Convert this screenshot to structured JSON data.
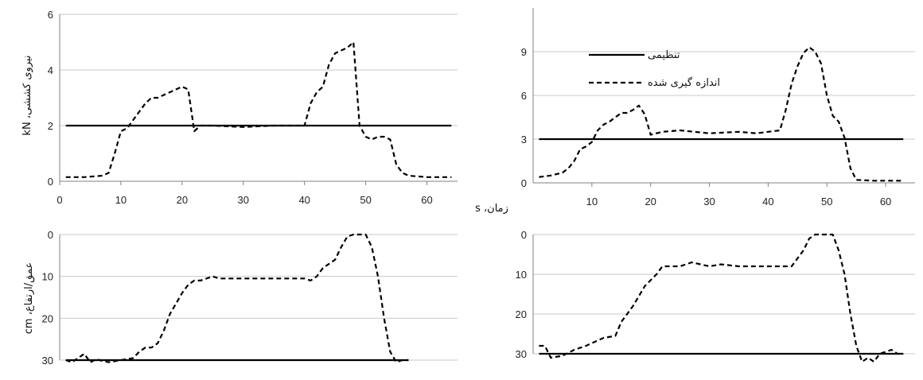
{
  "labels": {
    "force_ylabel": "نیروی کششی، kN",
    "depth_ylabel": "عمق/ارتفاع، cm",
    "time_xlabel": "زمان، s"
  },
  "legend": {
    "set_label": "تنظیمی",
    "measured_label": "اندازه گیری شده"
  },
  "colors": {
    "line": "#000000",
    "grid": "#c8c8c8",
    "axis": "#808080"
  },
  "chart_data": [
    {
      "id": "force-left",
      "type": "line",
      "xlim": [
        0,
        65
      ],
      "ylim": [
        0,
        6
      ],
      "xticks": [
        0,
        10,
        20,
        30,
        40,
        50,
        60
      ],
      "yticks": [
        0,
        2,
        4,
        6
      ],
      "inverted_y": false,
      "grid": true,
      "series": [
        {
          "name": "تنظیمی",
          "style": "solid",
          "x": [
            1,
            64
          ],
          "y": [
            2,
            2
          ]
        },
        {
          "name": "اندازه گیری شده",
          "style": "dashed",
          "x": [
            1,
            4,
            7,
            8,
            9,
            10,
            11,
            12,
            13,
            14,
            15,
            16,
            17,
            18,
            19,
            20,
            21,
            22,
            23,
            25,
            30,
            35,
            40,
            41,
            42,
            43,
            44,
            45,
            46,
            47,
            48,
            49,
            50,
            51,
            52,
            53,
            54,
            55,
            56,
            57,
            60,
            64
          ],
          "y": [
            0.15,
            0.15,
            0.2,
            0.3,
            1.0,
            1.8,
            1.9,
            2.2,
            2.5,
            2.8,
            3.0,
            3.0,
            3.1,
            3.2,
            3.3,
            3.4,
            3.3,
            1.8,
            2.0,
            2.0,
            1.95,
            2.0,
            2.0,
            2.8,
            3.2,
            3.4,
            4.2,
            4.6,
            4.7,
            4.8,
            5.0,
            2.0,
            1.6,
            1.5,
            1.6,
            1.6,
            1.5,
            0.6,
            0.3,
            0.2,
            0.15,
            0.15
          ]
        }
      ]
    },
    {
      "id": "force-right",
      "type": "line",
      "xlim": [
        0,
        65
      ],
      "ylim": [
        0,
        12
      ],
      "xticks": [
        10,
        20,
        30,
        40,
        50,
        60
      ],
      "yticks": [
        0,
        3,
        6,
        9
      ],
      "inverted_y": false,
      "grid": true,
      "legend": "top-left",
      "series": [
        {
          "name": "تنظیمی",
          "style": "solid",
          "x": [
            1,
            63
          ],
          "y": [
            3,
            3
          ]
        },
        {
          "name": "اندازه گیری شده",
          "style": "dashed",
          "x": [
            1,
            3,
            5,
            6,
            7,
            8,
            9,
            10,
            11,
            12,
            13,
            14,
            15,
            16,
            17,
            18,
            19,
            20,
            22,
            25,
            30,
            35,
            38,
            40,
            42,
            43,
            44,
            45,
            46,
            47,
            48,
            49,
            50,
            51,
            52,
            53,
            54,
            55,
            58,
            63
          ],
          "y": [
            0.4,
            0.5,
            0.7,
            1.0,
            1.5,
            2.3,
            2.5,
            2.8,
            3.6,
            4.0,
            4.2,
            4.5,
            4.8,
            4.8,
            5.0,
            5.3,
            4.7,
            3.3,
            3.5,
            3.6,
            3.4,
            3.5,
            3.4,
            3.5,
            3.6,
            5.0,
            6.8,
            8.0,
            8.9,
            9.3,
            9.0,
            8.2,
            6.0,
            4.6,
            4.2,
            3.1,
            1.0,
            0.2,
            0.15,
            0.15
          ]
        }
      ]
    },
    {
      "id": "depth-left",
      "type": "line",
      "xlim": [
        0,
        65
      ],
      "ylim": [
        0,
        30
      ],
      "yticks": [
        0,
        10,
        20,
        30
      ],
      "inverted_y": true,
      "grid": true,
      "series": [
        {
          "name": "تنظیمی",
          "style": "solid",
          "x": [
            1,
            57
          ],
          "y": [
            30,
            30
          ]
        },
        {
          "name": "اندازه گیری شده",
          "style": "dashed",
          "x": [
            1,
            2,
            3,
            4,
            5,
            6,
            7,
            8,
            10,
            12,
            13,
            14,
            15,
            16,
            17,
            18,
            19,
            20,
            21,
            22,
            23,
            24,
            25,
            26,
            30,
            35,
            40,
            41,
            42,
            43,
            44,
            45,
            46,
            47,
            48,
            49,
            50,
            51,
            52,
            53,
            54,
            55,
            56,
            57
          ],
          "y": [
            30,
            30.5,
            29.5,
            28.5,
            30.5,
            29.8,
            30.2,
            30.5,
            30,
            29.5,
            28,
            27,
            27,
            26,
            23,
            19,
            16.5,
            14,
            12,
            11,
            11,
            10.5,
            10,
            10.5,
            10.5,
            10.5,
            10.5,
            11,
            10,
            8,
            7,
            6,
            3,
            0.5,
            0,
            0,
            0,
            3,
            10,
            20,
            28,
            30.5,
            30,
            30
          ]
        }
      ]
    },
    {
      "id": "depth-right",
      "type": "line",
      "xlim": [
        0,
        65
      ],
      "ylim": [
        0,
        30
      ],
      "yticks": [
        0,
        10,
        20,
        30
      ],
      "inverted_y": true,
      "grid": true,
      "series": [
        {
          "name": "تنظیمی",
          "style": "solid",
          "x": [
            1,
            63
          ],
          "y": [
            30,
            30
          ]
        },
        {
          "name": "اندازه گیری شده",
          "style": "dashed",
          "x": [
            1,
            2,
            3,
            5,
            7,
            9,
            12,
            14,
            15,
            17,
            19,
            21,
            22,
            25,
            27,
            30,
            32,
            35,
            38,
            40,
            42,
            44,
            45,
            46,
            47,
            48,
            49,
            50,
            51,
            52,
            53,
            54,
            55,
            56,
            57,
            58,
            59,
            60,
            61,
            62,
            63
          ],
          "y": [
            28,
            28,
            31,
            30.5,
            29,
            28,
            26,
            25.5,
            22,
            18,
            13,
            10,
            8,
            8,
            7,
            8,
            7.5,
            8,
            8,
            8,
            8,
            8,
            6,
            4,
            1,
            0,
            0,
            0,
            0,
            4,
            10,
            20,
            28,
            32,
            31,
            32,
            30,
            29.5,
            29,
            30,
            30
          ]
        }
      ]
    }
  ]
}
